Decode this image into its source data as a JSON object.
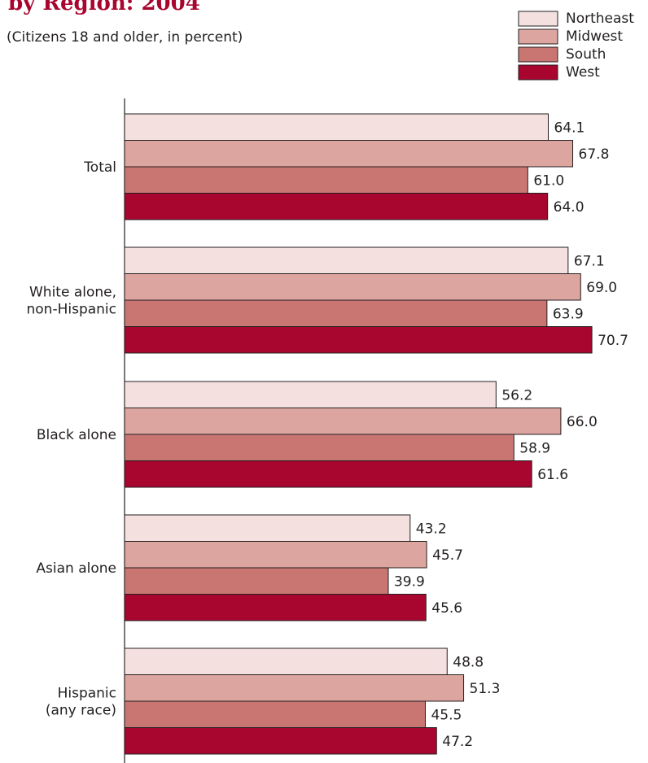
{
  "chart_data": {
    "type": "bar",
    "orientation": "horizontal",
    "title": "by Region: 2004",
    "subtitle": "(Citizens 18 and older, in percent)",
    "categories": [
      [
        "Total"
      ],
      [
        "White alone,",
        "non-Hispanic"
      ],
      [
        "Black alone"
      ],
      [
        "Asian alone"
      ],
      [
        "Hispanic",
        "(any race)"
      ]
    ],
    "series": [
      {
        "name": "Northeast",
        "color": "#f3e0df",
        "values": [
          64.1,
          67.1,
          56.2,
          43.2,
          48.8
        ]
      },
      {
        "name": "Midwest",
        "color": "#dda59f",
        "values": [
          67.8,
          69.0,
          66.0,
          45.7,
          51.3
        ]
      },
      {
        "name": "South",
        "color": "#c97672",
        "values": [
          61.0,
          63.9,
          58.9,
          39.9,
          45.5
        ]
      },
      {
        "name": "West",
        "color": "#a8062f",
        "values": [
          64.0,
          70.7,
          61.6,
          45.6,
          47.2
        ]
      }
    ],
    "value_labels": [
      [
        "64.1",
        "67.8",
        "61.0",
        "64.0"
      ],
      [
        "67.1",
        "69.0",
        "63.9",
        "70.7"
      ],
      [
        "56.2",
        "66.0",
        "58.9",
        "61.6"
      ],
      [
        "43.2",
        "45.7",
        "39.9",
        "45.6"
      ],
      [
        "48.8",
        "51.3",
        "45.5",
        "47.2"
      ]
    ],
    "xlim": [
      0,
      70.7
    ],
    "grid": false,
    "legend_position": "top-right",
    "title_color": "#a8062f"
  }
}
